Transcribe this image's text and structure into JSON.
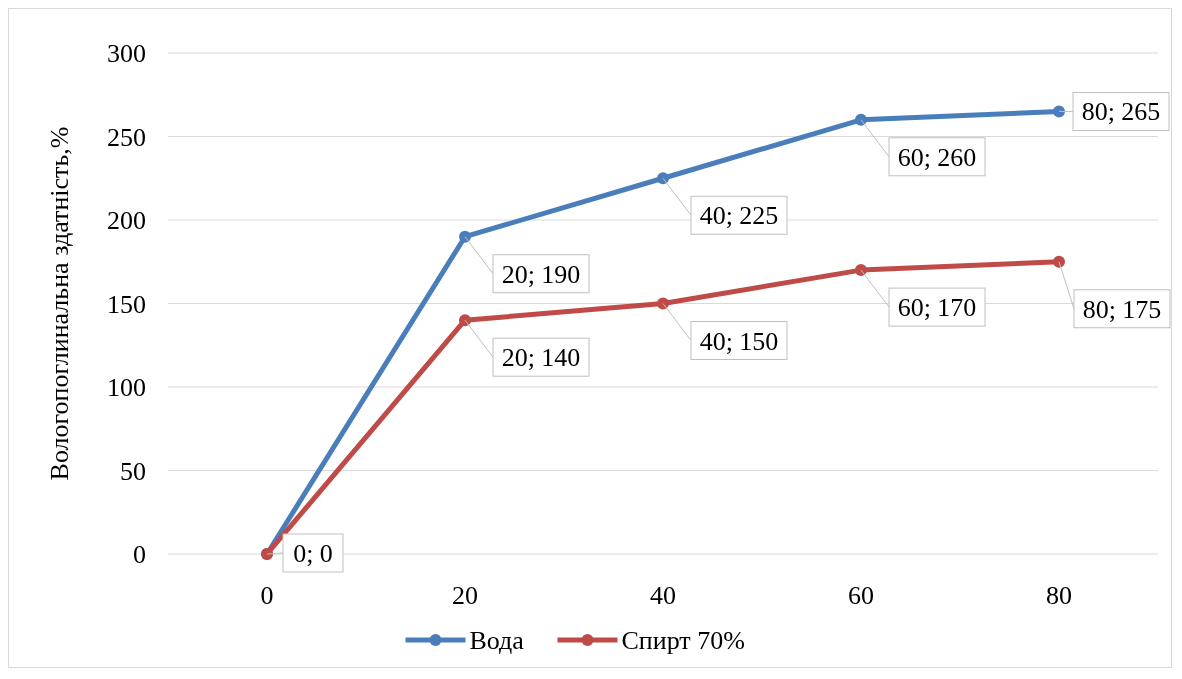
{
  "chart_data": {
    "type": "line",
    "ylabel": "Вологопоглинальна здатність,%",
    "categories": [
      "0",
      "20",
      "40",
      "60",
      "80"
    ],
    "series": [
      {
        "name": "Вода",
        "color": "#4a7ebb",
        "values": [
          0,
          190,
          225,
          260,
          265
        ],
        "value_labels": [
          null,
          "20; 190",
          "40; 225",
          "60; 260",
          "80; 265"
        ]
      },
      {
        "name": "Спирт 70%",
        "color": "#be4b48",
        "values": [
          0,
          140,
          150,
          170,
          175
        ],
        "value_labels": [
          "0; 0",
          "20; 140",
          "40; 150",
          "60; 170",
          "80; 175"
        ]
      }
    ],
    "ylim": [
      0,
      300
    ],
    "yticks": [
      0,
      50,
      100,
      150,
      200,
      250,
      300
    ],
    "grid": "y",
    "legend": "bottom",
    "marker": "circle",
    "line_style": "solid"
  }
}
